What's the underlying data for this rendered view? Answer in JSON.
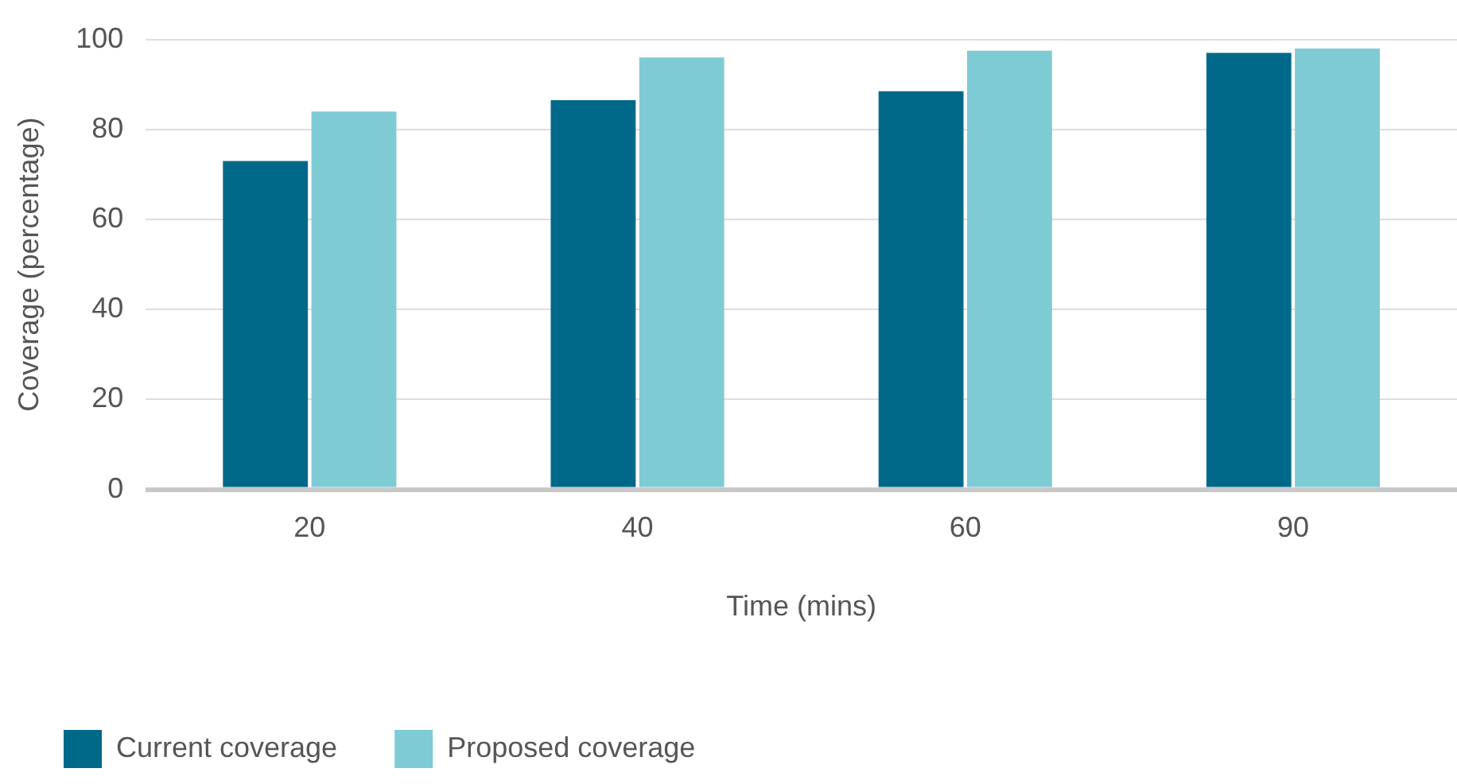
{
  "chart_data": {
    "type": "bar",
    "xlabel": "Time (mins)",
    "ylabel": "Coverage (percentage)",
    "categories": [
      "20",
      "40",
      "60",
      "90"
    ],
    "series": [
      {
        "name": "Current coverage",
        "color": "#00698a",
        "values": [
          73,
          86.5,
          88.5,
          97
        ]
      },
      {
        "name": "Proposed coverage",
        "color": "#7fcbd3",
        "values": [
          84,
          96,
          97.5,
          98
        ]
      }
    ],
    "ylim": [
      0,
      100
    ],
    "yticks": [
      0,
      20,
      40,
      60,
      80,
      100
    ],
    "grid": "y",
    "legend": "bottom left"
  }
}
